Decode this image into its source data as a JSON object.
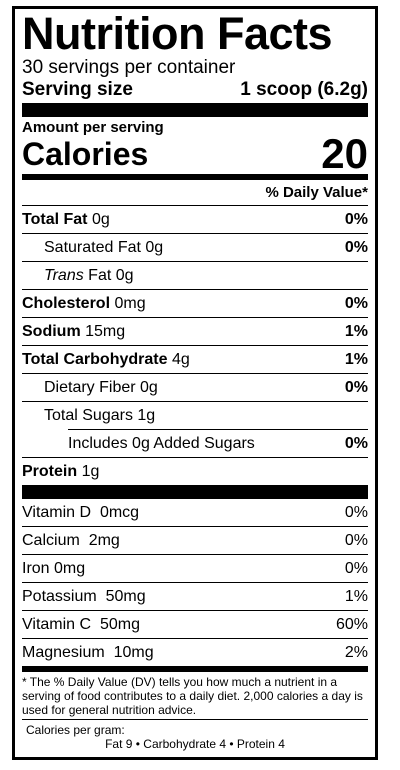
{
  "title": "Nutrition Facts",
  "servings_per_container": "30 servings per container",
  "serving_size": {
    "label": "Serving size",
    "value": "1 scoop (6.2g)"
  },
  "amount_per_serving": "Amount per serving",
  "calories": {
    "label": "Calories",
    "value": "20"
  },
  "daily_value_header": "% Daily Value*",
  "nutrients": [
    {
      "bold": "Total Fat",
      "amount": "0g",
      "dv": "0%"
    },
    {
      "name": "Saturated Fat",
      "amount": "0g",
      "dv": "0%"
    },
    {
      "italic": "Trans",
      "name": "Fat",
      "amount": "0g",
      "dv": ""
    },
    {
      "bold": "Cholesterol",
      "amount": "0mg",
      "dv": "0%"
    },
    {
      "bold": "Sodium",
      "amount": "15mg",
      "dv": "1%"
    },
    {
      "bold": "Total Carbohydrate",
      "amount": "4g",
      "dv": "1%"
    },
    {
      "name": "Dietary Fiber",
      "amount": "0g",
      "dv": "0%"
    },
    {
      "name": "Total Sugars",
      "amount": "1g",
      "dv": ""
    },
    {
      "name": "Includes 0g Added Sugars",
      "dv": "0%"
    },
    {
      "bold": "Protein",
      "amount": "1g"
    }
  ],
  "vitamins": [
    {
      "name": "Vitamin D",
      "amount": "0mcg",
      "dv": "0%"
    },
    {
      "name": "Calcium",
      "amount": "2mg",
      "dv": "0%"
    },
    {
      "name": "Iron",
      "amount": "0mg",
      "dv": "0%"
    },
    {
      "name": "Potassium",
      "amount": "50mg",
      "dv": "1%"
    },
    {
      "name": "Vitamin C",
      "amount": "50mg",
      "dv": "60%"
    },
    {
      "name": "Magnesium",
      "amount": "10mg",
      "dv": "2%"
    }
  ],
  "footnote": "* The % Daily Value (DV) tells you how much a nutrient in a serving of food contributes to a daily diet. 2,000 calories a day is used for general nutrition advice.",
  "calories_per_gram": {
    "label": "Calories per gram:",
    "values": "Fat 9   •   Carbohydrate 4   •   Protein 4"
  }
}
